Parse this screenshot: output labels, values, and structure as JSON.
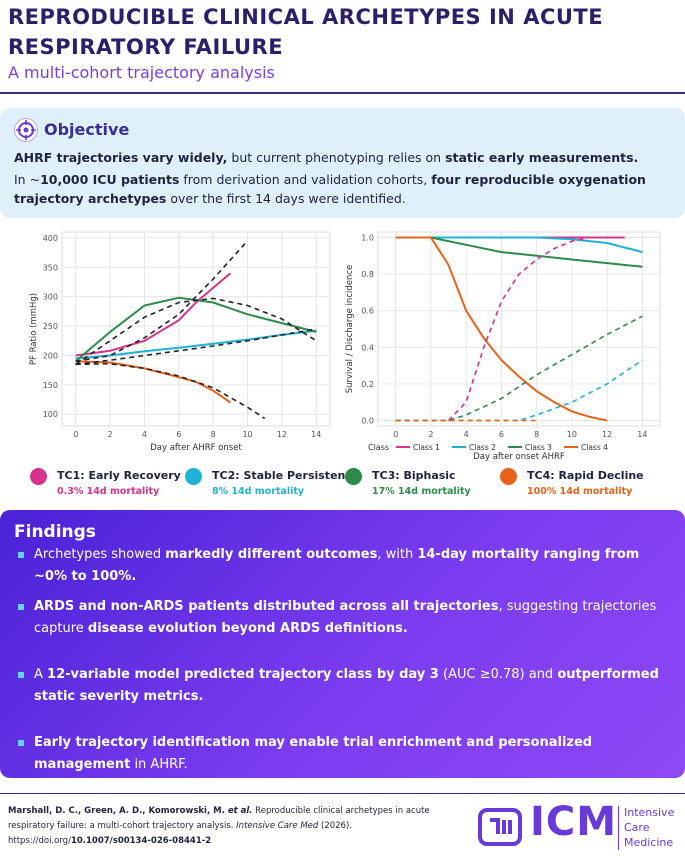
{
  "header": {
    "title": "REPRODUCIBLE CLINICAL ARCHETYPES IN ACUTE RESPIRATORY FAILURE",
    "subtitle": "A multi-cohort trajectory analysis"
  },
  "objective": {
    "heading": "Objective",
    "paragraphs": [
      [
        {
          "text": "AHRF trajectories vary widely,",
          "bold": true
        },
        {
          "text": " but current phenotyping relies on "
        },
        {
          "text": "static early measurements.",
          "bold": true
        }
      ],
      [
        {
          "text": "In ~"
        },
        {
          "text": "10,000 ICU patients",
          "bold": true
        },
        {
          "text": " from derivation and validation cohorts, "
        },
        {
          "text": "four reproducible oxygenation trajectory archetypes",
          "bold": true
        },
        {
          "text": " over the first 14 days were identified."
        }
      ]
    ]
  },
  "figures": {
    "left": {
      "type": "line",
      "xlabel": "Day after AHRF onset",
      "ylabel": "PF Ratio (mmHg)",
      "xlim": [
        -0.8,
        14.8
      ],
      "ylim": [
        80,
        410
      ],
      "xticks": [
        0,
        2,
        4,
        6,
        8,
        10,
        12,
        14
      ],
      "yticks": [
        100,
        150,
        200,
        250,
        300,
        350,
        400
      ],
      "grid": true,
      "series": [
        {
          "color": "#d6338a",
          "style": "solid",
          "x": [
            0,
            2,
            4,
            6,
            7,
            8,
            9
          ],
          "values": [
            200,
            208,
            225,
            260,
            290,
            315,
            340
          ]
        },
        {
          "color": "#1fb2d6",
          "style": "solid",
          "x": [
            0,
            2,
            4,
            6,
            8,
            10,
            12,
            14
          ],
          "values": [
            195,
            200,
            207,
            213,
            220,
            227,
            235,
            242
          ]
        },
        {
          "color": "#2e8b4a",
          "style": "solid",
          "x": [
            0,
            2,
            4,
            6,
            8,
            10,
            12,
            14
          ],
          "values": [
            190,
            240,
            285,
            298,
            290,
            270,
            255,
            240
          ]
        },
        {
          "color": "#e8621a",
          "style": "solid",
          "x": [
            0,
            2,
            4,
            6,
            7,
            8,
            9
          ],
          "values": [
            190,
            188,
            178,
            163,
            155,
            140,
            120
          ]
        },
        {
          "color": "#222222",
          "style": "dashed",
          "x": [
            0,
            2,
            4,
            6,
            8,
            10
          ],
          "values": [
            190,
            200,
            230,
            270,
            330,
            395
          ]
        },
        {
          "color": "#222222",
          "style": "dashed",
          "x": [
            0,
            2,
            4,
            6,
            8,
            10,
            12,
            14
          ],
          "values": [
            185,
            192,
            200,
            208,
            216,
            225,
            235,
            245
          ]
        },
        {
          "color": "#222222",
          "style": "dashed",
          "x": [
            0,
            2,
            4,
            6,
            8,
            10,
            12,
            14
          ],
          "values": [
            185,
            225,
            265,
            290,
            297,
            285,
            262,
            225
          ]
        },
        {
          "color": "#222222",
          "style": "dashed",
          "x": [
            0,
            2,
            4,
            6,
            8,
            10,
            11
          ],
          "values": [
            185,
            186,
            178,
            165,
            145,
            112,
            93
          ]
        }
      ]
    },
    "right": {
      "type": "line",
      "xlabel": "Day after onset AHRF",
      "ylabel": "Survival / Discharge incidence",
      "xlim": [
        -1,
        15
      ],
      "ylim": [
        -0.03,
        1.03
      ],
      "xticks": [
        0,
        2,
        4,
        6,
        8,
        10,
        12,
        14
      ],
      "yticks": [
        {
          "value": 0,
          "label": "0.0"
        },
        0.2,
        0.4,
        0.6,
        0.8,
        {
          "value": 1,
          "label": "1.0"
        }
      ],
      "grid": true,
      "legend_title": "Class",
      "series": [
        {
          "name": "Class 1",
          "color": "#d6338a",
          "style": "solid",
          "x": [
            0,
            4,
            8,
            13
          ],
          "values": [
            1,
            1,
            1,
            1
          ]
        },
        {
          "name": "Class 2",
          "color": "#1fb2d6",
          "style": "solid",
          "x": [
            0,
            8,
            10,
            12,
            14
          ],
          "values": [
            1,
            1,
            0.99,
            0.97,
            0.92
          ]
        },
        {
          "name": "Class 3",
          "color": "#2e8b4a",
          "style": "solid",
          "x": [
            0,
            2,
            4,
            6,
            8,
            10,
            12,
            14
          ],
          "values": [
            1,
            1,
            0.96,
            0.92,
            0.9,
            0.88,
            0.86,
            0.84
          ]
        },
        {
          "name": "Class 4",
          "color": "#e8621a",
          "style": "solid",
          "x": [
            0,
            2,
            3,
            4,
            5,
            6,
            7,
            8,
            9,
            10,
            11,
            12
          ],
          "values": [
            1,
            1,
            0.85,
            0.6,
            0.45,
            0.33,
            0.24,
            0.16,
            0.1,
            0.05,
            0.02,
            0
          ]
        },
        {
          "color": "#d6338a",
          "style": "dashed",
          "x": [
            3,
            4,
            5,
            6,
            7,
            8,
            9,
            10,
            11
          ],
          "values": [
            0,
            0.1,
            0.4,
            0.65,
            0.8,
            0.88,
            0.94,
            0.98,
            1
          ]
        },
        {
          "color": "#1fb2d6",
          "style": "dashed",
          "x": [
            0,
            7,
            8,
            10,
            12,
            14
          ],
          "values": [
            0,
            0,
            0.03,
            0.1,
            0.2,
            0.33
          ]
        },
        {
          "color": "#2e8b4a",
          "style": "dashed",
          "x": [
            0,
            3,
            4,
            6,
            8,
            10,
            12,
            14
          ],
          "values": [
            0,
            0,
            0.03,
            0.12,
            0.25,
            0.36,
            0.47,
            0.57
          ]
        },
        {
          "color": "#e8621a",
          "style": "dashed",
          "x": [
            0,
            4,
            8
          ],
          "values": [
            0,
            0,
            0
          ]
        }
      ]
    }
  },
  "classes": [
    {
      "name": "TC1: Early Recovery",
      "mortality": "0.3% 14d mortality",
      "color": "#d6338a"
    },
    {
      "name": "TC2: Stable Persistence",
      "mortality": "8% 14d mortality",
      "color": "#1fb2d6"
    },
    {
      "name": "TC3: Biphasic",
      "mortality": "17% 14d mortality",
      "color": "#2e8b4a"
    },
    {
      "name": "TC4: Rapid Decline",
      "mortality": "100% 14d mortality",
      "color": "#e8621a"
    }
  ],
  "findings": {
    "heading": "Findings",
    "items": [
      [
        {
          "text": "Archetypes showed "
        },
        {
          "text": "markedly different outcomes",
          "bold": true
        },
        {
          "text": ", with "
        },
        {
          "text": "14-day mortality ranging from ~0% to 100%.",
          "bold": true
        }
      ],
      [
        {
          "text": "ARDS and non-ARDS patients distributed across all trajectories",
          "bold": true
        },
        {
          "text": ", suggesting trajectories capture "
        },
        {
          "text": "disease evolution beyond ARDS definitions.",
          "bold": true
        }
      ],
      [
        {
          "text": "A "
        },
        {
          "text": "12-variable model predicted trajectory class by day 3",
          "bold": true
        },
        {
          "text": " (AUC ≥0.78) and "
        },
        {
          "text": "outperformed static severity metrics.",
          "bold": true
        }
      ],
      [
        {
          "text": "Early trajectory identification may enable trial enrichment and personalized management",
          "bold": true
        },
        {
          "text": " in AHRF."
        }
      ]
    ]
  },
  "footer": {
    "citation": [
      {
        "text": "Marshall, D. C., Green, A. D., Komorowski, M. ",
        "bold": true
      },
      {
        "text": "et al.",
        "bold": true,
        "italic": true
      },
      {
        "text": " Reproducible clinical archetypes in acute respiratory failure: a multi-cohort trajectory analysis. "
      },
      {
        "text": "Intensive Care Med",
        "italic": true
      },
      {
        "text": " (2026). https://doi.org/"
      },
      {
        "text": "10.1007/s00134-026-08441-2",
        "bold": true
      }
    ],
    "logo": {
      "mark": "ICM",
      "words": [
        "Intensive",
        "Care",
        "Medicine"
      ]
    }
  }
}
